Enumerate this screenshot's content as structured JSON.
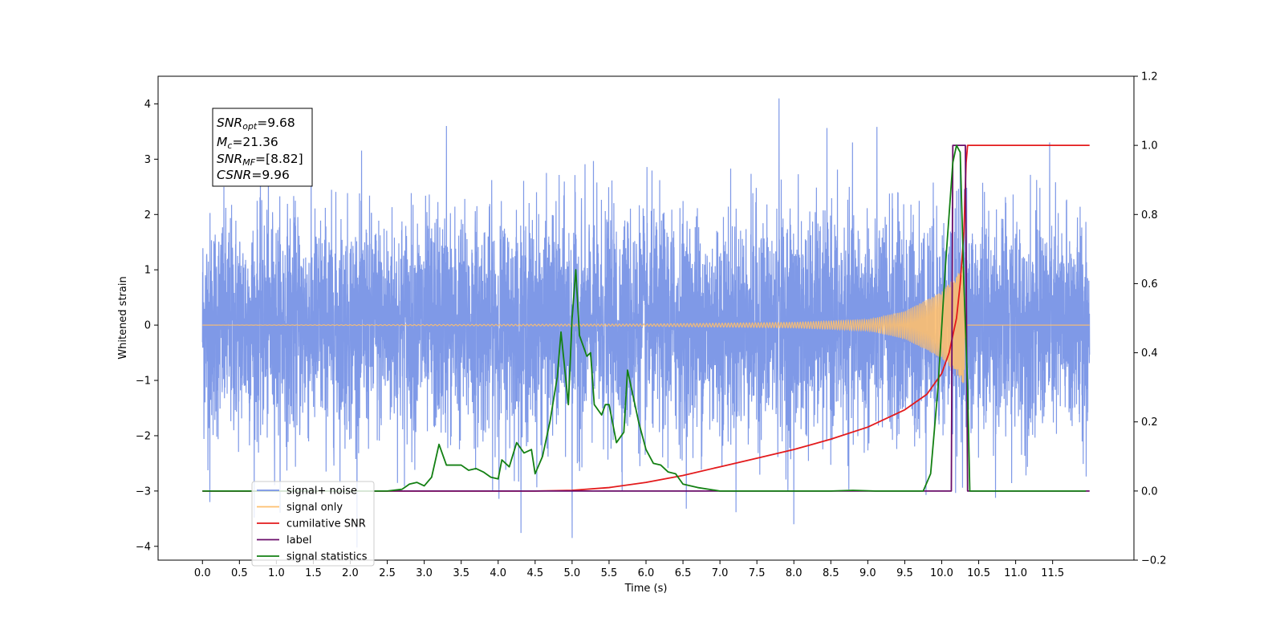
{
  "chart_data": {
    "type": "line",
    "xlabel": "Time (s)",
    "ylabel": "Whitened strain",
    "xlim": [
      -0.6,
      12.6
    ],
    "ylim": [
      -4.25,
      4.5
    ],
    "y2lim": [
      -0.2,
      1.2
    ],
    "x_ticks": [
      "0.0",
      "0.5",
      "1.0",
      "1.5",
      "2.0",
      "2.5",
      "3.0",
      "3.5",
      "4.0",
      "4.5",
      "5.0",
      "5.5",
      "6.0",
      "6.5",
      "7.0",
      "7.5",
      "8.0",
      "8.5",
      "9.0",
      "9.5",
      "10.0",
      "10.5",
      "11.0",
      "11.5"
    ],
    "y_ticks": [
      "−4",
      "−3",
      "−2",
      "−1",
      "0",
      "1",
      "2",
      "3",
      "4"
    ],
    "y2_ticks": [
      "−0.2",
      "0.0",
      "0.2",
      "0.4",
      "0.6",
      "0.8",
      "1.0",
      "1.2"
    ],
    "annotation": {
      "snr_opt": {
        "base": "SNR",
        "sub": "opt",
        "value": "=9.68"
      },
      "mc": {
        "base": "M",
        "sub": "c",
        "value": "=21.36"
      },
      "snr_mf": {
        "base": "SNR",
        "sub": "MF",
        "value": "=[8.82]"
      },
      "csnr": {
        "base": "CSNR",
        "value": "=9.96"
      }
    },
    "legend_position": "lower-left",
    "series": [
      {
        "name": "signal+ noise",
        "color": "#7893e6",
        "axis": "left",
        "x_range": [
          0.0,
          12.0
        ],
        "noise_std": 1.0,
        "notable_peaks": [
          [
            7.8,
            4.1
          ],
          [
            5.0,
            -3.85
          ],
          [
            3.3,
            3.6
          ],
          [
            10.25,
            3.15
          ],
          [
            0.1,
            -3.2
          ],
          [
            8.0,
            -3.6
          ]
        ]
      },
      {
        "name": "signal only",
        "color": "#fdbf6f",
        "axis": "left",
        "description_points": [
          [
            0.0,
            0.0
          ],
          [
            6.0,
            0.02
          ],
          [
            8.0,
            0.05
          ],
          [
            9.0,
            0.1
          ],
          [
            9.5,
            0.25
          ],
          [
            10.0,
            0.6
          ],
          [
            10.2,
            0.9
          ],
          [
            10.3,
            1.1
          ],
          [
            10.32,
            0.0
          ],
          [
            12.0,
            0.0
          ]
        ]
      },
      {
        "name": "cumilative SNR",
        "color": "#e31a1c",
        "axis": "right",
        "points": [
          [
            0.0,
            0.0
          ],
          [
            4.5,
            0.0
          ],
          [
            5.0,
            0.002
          ],
          [
            5.5,
            0.01
          ],
          [
            6.0,
            0.025
          ],
          [
            6.5,
            0.045
          ],
          [
            7.0,
            0.07
          ],
          [
            7.5,
            0.095
          ],
          [
            8.0,
            0.12
          ],
          [
            8.5,
            0.15
          ],
          [
            9.0,
            0.185
          ],
          [
            9.5,
            0.235
          ],
          [
            9.8,
            0.28
          ],
          [
            10.0,
            0.34
          ],
          [
            10.1,
            0.4
          ],
          [
            10.2,
            0.5
          ],
          [
            10.25,
            0.6
          ],
          [
            10.3,
            0.75
          ],
          [
            10.33,
            0.95
          ],
          [
            10.35,
            1.0
          ],
          [
            12.0,
            1.0
          ]
        ]
      },
      {
        "name": "label",
        "color": "#6a0d6a",
        "axis": "right",
        "points": [
          [
            0.0,
            0.0
          ],
          [
            10.13,
            0.0
          ],
          [
            10.15,
            1.0
          ],
          [
            10.32,
            1.0
          ],
          [
            10.35,
            0.0
          ],
          [
            12.0,
            0.0
          ]
        ]
      },
      {
        "name": "signal statistics",
        "color": "#138013",
        "axis": "right",
        "points": [
          [
            0.0,
            0.0
          ],
          [
            2.5,
            0.0
          ],
          [
            2.7,
            0.005
          ],
          [
            2.8,
            0.02
          ],
          [
            2.9,
            0.025
          ],
          [
            3.0,
            0.015
          ],
          [
            3.1,
            0.04
          ],
          [
            3.2,
            0.135
          ],
          [
            3.3,
            0.075
          ],
          [
            3.5,
            0.075
          ],
          [
            3.6,
            0.06
          ],
          [
            3.7,
            0.065
          ],
          [
            3.8,
            0.055
          ],
          [
            3.9,
            0.04
          ],
          [
            4.0,
            0.035
          ],
          [
            4.05,
            0.09
          ],
          [
            4.15,
            0.07
          ],
          [
            4.25,
            0.14
          ],
          [
            4.35,
            0.11
          ],
          [
            4.45,
            0.12
          ],
          [
            4.5,
            0.05
          ],
          [
            4.6,
            0.1
          ],
          [
            4.7,
            0.2
          ],
          [
            4.8,
            0.33
          ],
          [
            4.85,
            0.46
          ],
          [
            4.95,
            0.25
          ],
          [
            5.0,
            0.5
          ],
          [
            5.05,
            0.64
          ],
          [
            5.1,
            0.45
          ],
          [
            5.2,
            0.39
          ],
          [
            5.25,
            0.4
          ],
          [
            5.3,
            0.25
          ],
          [
            5.4,
            0.22
          ],
          [
            5.45,
            0.25
          ],
          [
            5.5,
            0.25
          ],
          [
            5.6,
            0.14
          ],
          [
            5.7,
            0.17
          ],
          [
            5.75,
            0.35
          ],
          [
            5.8,
            0.3
          ],
          [
            5.9,
            0.2
          ],
          [
            6.0,
            0.12
          ],
          [
            6.1,
            0.08
          ],
          [
            6.2,
            0.075
          ],
          [
            6.3,
            0.055
          ],
          [
            6.4,
            0.05
          ],
          [
            6.5,
            0.02
          ],
          [
            6.7,
            0.01
          ],
          [
            7.0,
            0.0
          ],
          [
            8.5,
            0.0
          ],
          [
            8.8,
            0.002
          ],
          [
            9.1,
            0.0
          ],
          [
            9.75,
            0.0
          ],
          [
            9.85,
            0.05
          ],
          [
            9.95,
            0.3
          ],
          [
            10.05,
            0.65
          ],
          [
            10.15,
            0.95
          ],
          [
            10.2,
            1.0
          ],
          [
            10.25,
            0.98
          ],
          [
            10.3,
            0.6
          ],
          [
            10.35,
            0.3
          ],
          [
            10.38,
            0.0
          ],
          [
            11.95,
            0.0
          ]
        ]
      }
    ],
    "grid": false
  }
}
